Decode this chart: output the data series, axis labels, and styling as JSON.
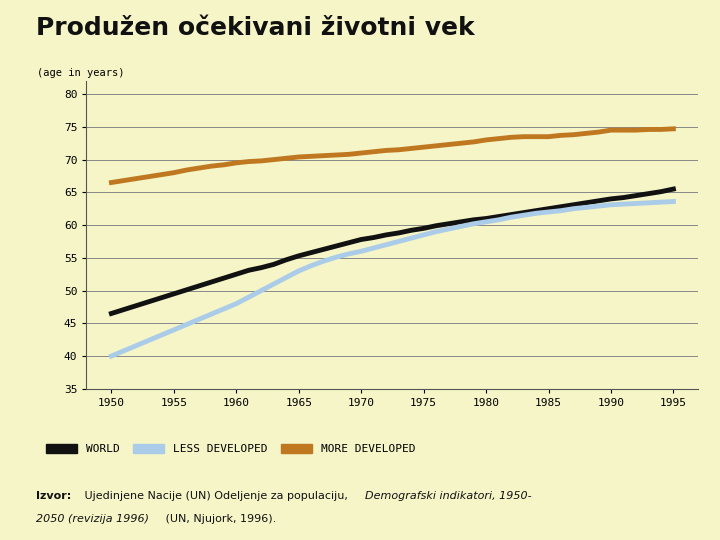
{
  "title": "Produžen očekivani životni vek",
  "ylabel": "(age in years)",
  "background_color": "#f5f5c8",
  "years": [
    1950,
    1951,
    1952,
    1953,
    1954,
    1955,
    1956,
    1957,
    1958,
    1959,
    1960,
    1961,
    1962,
    1963,
    1964,
    1965,
    1966,
    1967,
    1968,
    1969,
    1970,
    1971,
    1972,
    1973,
    1974,
    1975,
    1976,
    1977,
    1978,
    1979,
    1980,
    1981,
    1982,
    1983,
    1984,
    1985,
    1986,
    1987,
    1988,
    1989,
    1990,
    1991,
    1992,
    1993,
    1994,
    1995
  ],
  "world": [
    46.5,
    47.1,
    47.7,
    48.3,
    48.9,
    49.5,
    50.1,
    50.7,
    51.3,
    51.9,
    52.5,
    53.1,
    53.5,
    54.0,
    54.7,
    55.3,
    55.8,
    56.3,
    56.8,
    57.3,
    57.8,
    58.1,
    58.5,
    58.8,
    59.2,
    59.5,
    59.9,
    60.2,
    60.5,
    60.8,
    61.0,
    61.3,
    61.6,
    61.9,
    62.2,
    62.5,
    62.8,
    63.1,
    63.4,
    63.7,
    64.0,
    64.2,
    64.5,
    64.8,
    65.1,
    65.5
  ],
  "less_developed": [
    40.0,
    40.8,
    41.6,
    42.4,
    43.2,
    44.0,
    44.8,
    45.6,
    46.4,
    47.2,
    48.0,
    49.0,
    50.0,
    51.0,
    52.0,
    53.0,
    53.8,
    54.5,
    55.1,
    55.6,
    56.0,
    56.5,
    57.0,
    57.5,
    58.0,
    58.5,
    59.0,
    59.4,
    59.8,
    60.2,
    60.5,
    60.8,
    61.2,
    61.5,
    61.8,
    62.0,
    62.2,
    62.5,
    62.7,
    62.9,
    63.1,
    63.2,
    63.3,
    63.4,
    63.5,
    63.6
  ],
  "more_developed": [
    66.5,
    66.8,
    67.1,
    67.4,
    67.7,
    68.0,
    68.4,
    68.7,
    69.0,
    69.2,
    69.5,
    69.7,
    69.8,
    70.0,
    70.2,
    70.4,
    70.5,
    70.6,
    70.7,
    70.8,
    71.0,
    71.2,
    71.4,
    71.5,
    71.7,
    71.9,
    72.1,
    72.3,
    72.5,
    72.7,
    73.0,
    73.2,
    73.4,
    73.5,
    73.5,
    73.5,
    73.7,
    73.8,
    74.0,
    74.2,
    74.5,
    74.5,
    74.5,
    74.6,
    74.6,
    74.7
  ],
  "world_color": "#111111",
  "less_developed_color": "#aacce8",
  "more_developed_color": "#c07820",
  "ylim": [
    35,
    82
  ],
  "yticks": [
    35,
    40,
    45,
    50,
    55,
    60,
    65,
    70,
    75,
    80
  ],
  "xticks": [
    1950,
    1955,
    1960,
    1965,
    1970,
    1975,
    1980,
    1985,
    1990,
    1995
  ],
  "legend_world": "WORLD",
  "legend_less": "LESS DEVELOPED",
  "legend_more": "MORE DEVELOPED",
  "line_width": 3.5
}
